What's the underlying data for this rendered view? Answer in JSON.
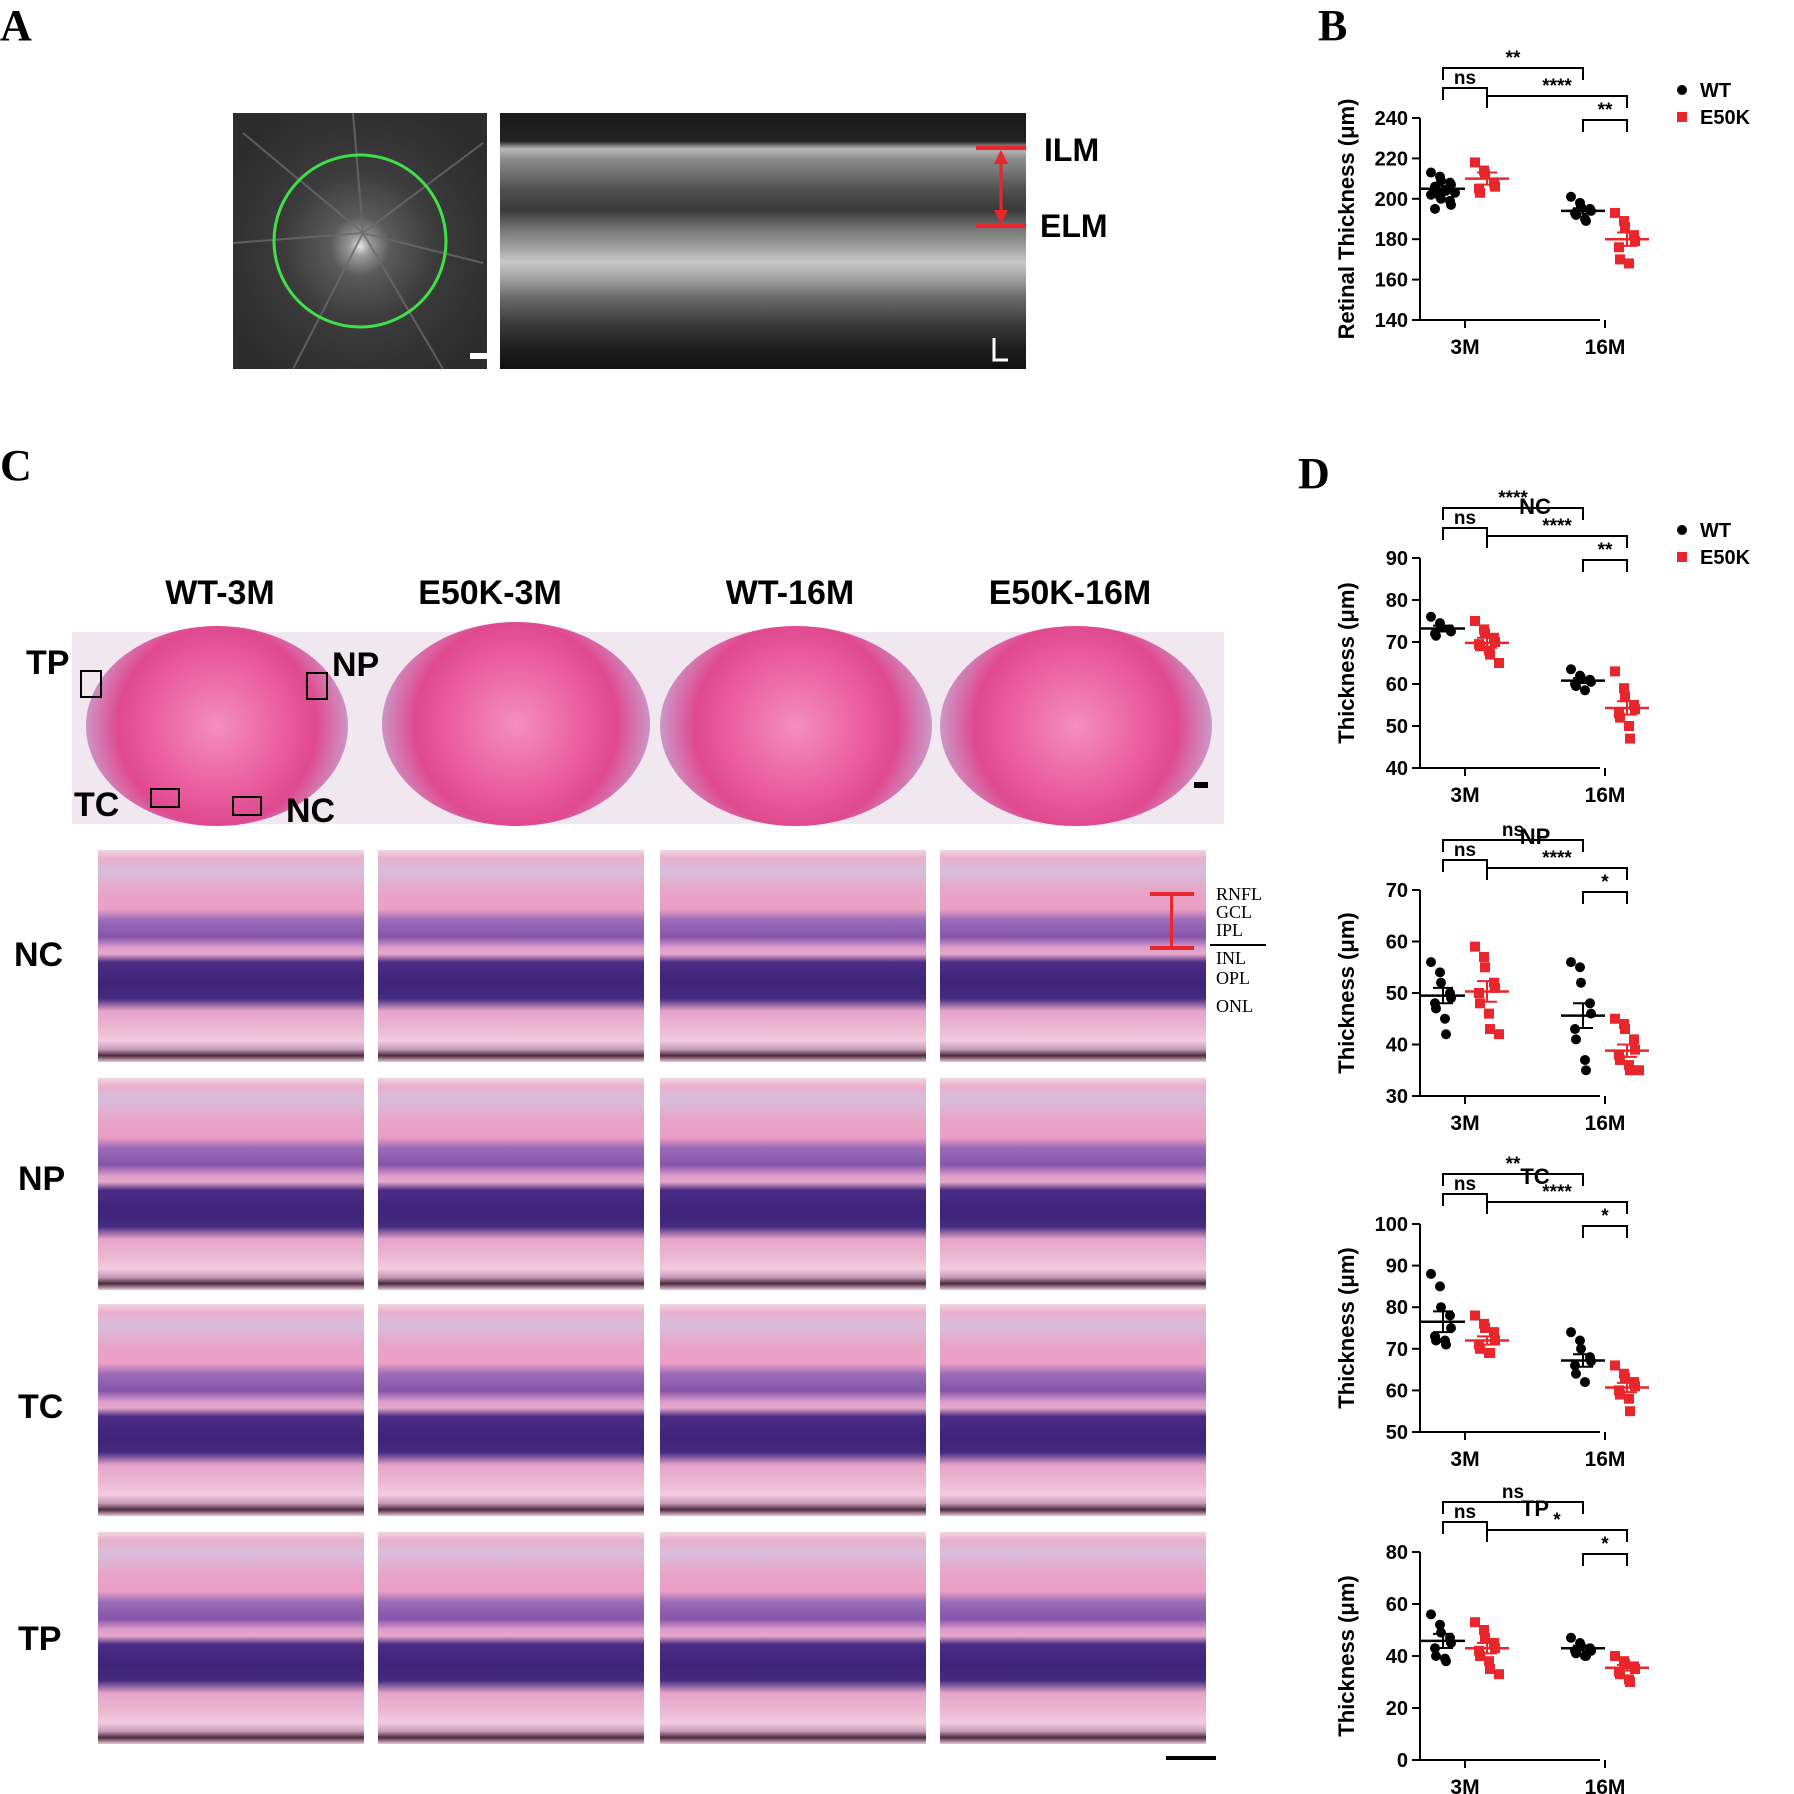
{
  "panels": {
    "a": "A",
    "b": "B",
    "c": "C",
    "d": "D"
  },
  "oct": {
    "ilm": "ILM",
    "elm": "ELM"
  },
  "histology": {
    "columns": [
      "WT-3M",
      "E50K-3M",
      "WT-16M",
      "E50K-16M"
    ],
    "rows": [
      "NC",
      "NP",
      "TC",
      "TP"
    ],
    "region_marks": [
      "TP",
      "NP",
      "TC",
      "NC"
    ],
    "layers": [
      "RNFL",
      "GCL",
      "IPL",
      "INL",
      "OPL",
      "ONL"
    ]
  },
  "legend": [
    "WT",
    "E50K"
  ],
  "colors": {
    "wt": "#000000",
    "e50k": "#e8262b"
  },
  "chart_data": [
    {
      "type": "scatter",
      "panel": "B",
      "ylabel": "Retinal Thickness (μm)",
      "categories": [
        "3M",
        "16M"
      ],
      "ylim": [
        140,
        240
      ],
      "yticks": [
        140,
        160,
        180,
        200,
        220,
        240
      ],
      "series": [
        {
          "name": "WT",
          "means": [
            205,
            194
          ],
          "sems": [
            1.4,
            1.3
          ],
          "points": [
            [
              213,
              211,
              209,
              208,
              207,
              206,
              205,
              204,
              204,
              203,
              202,
              201,
              200,
              199,
              197,
              195
            ],
            [
              201,
              198,
              196,
              195,
              194,
              193,
              192,
              190,
              189
            ]
          ]
        },
        {
          "name": "E50K",
          "means": [
            210,
            180
          ],
          "sems": [
            3,
            3.3
          ],
          "points": [
            [
              218,
              214,
              212,
              208,
              206,
              205,
              203
            ],
            [
              193,
              189,
              186,
              182,
              179,
              176,
              170,
              168
            ]
          ]
        }
      ],
      "brackets": [
        {
          "text": "**",
          "from": [
            0,
            0
          ],
          "to": [
            1,
            0
          ],
          "level": 0
        },
        {
          "text": "ns",
          "from": [
            0,
            0
          ],
          "to": [
            0,
            1
          ],
          "level": 2
        },
        {
          "text": "****",
          "from": [
            0,
            1
          ],
          "to": [
            1,
            1
          ],
          "level": 1
        },
        {
          "text": "**",
          "from": [
            1,
            0
          ],
          "to": [
            1,
            1
          ],
          "level": 3
        }
      ]
    },
    {
      "type": "scatter",
      "panel": "D",
      "title": "NC",
      "ylabel": "Thickness (μm)",
      "categories": [
        "3M",
        "16M"
      ],
      "ylim": [
        40,
        90
      ],
      "yticks": [
        40,
        50,
        60,
        70,
        80,
        90
      ],
      "series": [
        {
          "name": "WT",
          "means": [
            73.2,
            60.8
          ],
          "sems": [
            0.7,
            0.6
          ],
          "points": [
            [
              76,
              74.5,
              73.5,
              73,
              72.5,
              72,
              71.5
            ],
            [
              63.5,
              62,
              61.5,
              61,
              60.5,
              60,
              59.5,
              58.5
            ]
          ]
        },
        {
          "name": "E50K",
          "means": [
            69.8,
            54.3
          ],
          "sems": [
            1.2,
            1.6
          ],
          "points": [
            [
              75,
              73,
              72,
              71,
              70,
              69.5,
              69,
              68,
              67,
              65
            ],
            [
              63,
              59,
              57,
              55,
              54,
              53,
              52,
              50,
              47
            ]
          ]
        }
      ],
      "brackets": [
        {
          "text": "****",
          "from": [
            0,
            0
          ],
          "to": [
            1,
            0
          ],
          "level": 0
        },
        {
          "text": "ns",
          "from": [
            0,
            0
          ],
          "to": [
            0,
            1
          ],
          "level": 2
        },
        {
          "text": "****",
          "from": [
            0,
            1
          ],
          "to": [
            1,
            1
          ],
          "level": 1
        },
        {
          "text": "**",
          "from": [
            1,
            0
          ],
          "to": [
            1,
            1
          ],
          "level": 3
        }
      ]
    },
    {
      "type": "scatter",
      "panel": "D",
      "title": "NP",
      "ylabel": "Thickness (μm)",
      "categories": [
        "3M",
        "16M"
      ],
      "ylim": [
        30,
        70
      ],
      "yticks": [
        30,
        40,
        50,
        60,
        70
      ],
      "series": [
        {
          "name": "WT",
          "means": [
            49.5,
            45.6
          ],
          "sems": [
            1.5,
            2.4
          ],
          "points": [
            [
              56,
              54,
              52,
              50,
              49,
              48,
              47,
              45,
              42
            ],
            [
              56,
              55,
              52,
              48,
              46,
              43,
              41,
              37,
              35
            ]
          ]
        },
        {
          "name": "E50K",
          "means": [
            50.3,
            38.8
          ],
          "sems": [
            2,
            1.2
          ],
          "points": [
            [
              59,
              57,
              55,
              52,
              51,
              50,
              48,
              46,
              43,
              42
            ],
            [
              45,
              44,
              43,
              41,
              39,
              38,
              37,
              36,
              35,
              35
            ]
          ]
        }
      ],
      "brackets": [
        {
          "text": "ns",
          "from": [
            0,
            0
          ],
          "to": [
            1,
            0
          ],
          "level": 0
        },
        {
          "text": "ns",
          "from": [
            0,
            0
          ],
          "to": [
            0,
            1
          ],
          "level": 2
        },
        {
          "text": "****",
          "from": [
            0,
            1
          ],
          "to": [
            1,
            1
          ],
          "level": 1
        },
        {
          "text": "*",
          "from": [
            1,
            0
          ],
          "to": [
            1,
            1
          ],
          "level": 3
        }
      ]
    },
    {
      "type": "scatter",
      "panel": "D",
      "title": "TC",
      "ylabel": "Thickness (μm)",
      "categories": [
        "3M",
        "16M"
      ],
      "ylim": [
        50,
        100
      ],
      "yticks": [
        50,
        60,
        70,
        80,
        90,
        100
      ],
      "series": [
        {
          "name": "WT",
          "means": [
            76.5,
            67.2
          ],
          "sems": [
            2.5,
            1.5
          ],
          "points": [
            [
              88,
              85,
              80,
              78,
              75,
              73,
              72,
              72,
              71
            ],
            [
              74,
              72,
              70,
              68,
              67,
              66,
              64,
              62
            ]
          ]
        },
        {
          "name": "E50K",
          "means": [
            72,
            60.7
          ],
          "sems": [
            1,
            1.1
          ],
          "points": [
            [
              78,
              76,
              75,
              74,
              72,
              71,
              70,
              69,
              69
            ],
            [
              66,
              64,
              63,
              62,
              61,
              60,
              59,
              58,
              55
            ]
          ]
        }
      ],
      "brackets": [
        {
          "text": "**",
          "from": [
            0,
            0
          ],
          "to": [
            1,
            0
          ],
          "level": 0
        },
        {
          "text": "ns",
          "from": [
            0,
            0
          ],
          "to": [
            0,
            1
          ],
          "level": 2
        },
        {
          "text": "****",
          "from": [
            0,
            1
          ],
          "to": [
            1,
            1
          ],
          "level": 1
        },
        {
          "text": "*",
          "from": [
            1,
            0
          ],
          "to": [
            1,
            1
          ],
          "level": 3
        }
      ]
    },
    {
      "type": "scatter",
      "panel": "D",
      "title": "TP",
      "ylabel": "Thickness (μm)",
      "categories": [
        "3M",
        "16M"
      ],
      "ylim": [
        0,
        80
      ],
      "yticks": [
        0,
        20,
        40,
        60,
        80
      ],
      "series": [
        {
          "name": "WT",
          "means": [
            45.8,
            43
          ],
          "sems": [
            2.7,
            1
          ],
          "points": [
            [
              56,
              52,
              49,
              47,
              45,
              43,
              40,
              39,
              38
            ],
            [
              47,
              45,
              44,
              43,
              42,
              42,
              41,
              40,
              40
            ]
          ]
        },
        {
          "name": "E50K",
          "means": [
            43,
            35.5
          ],
          "sems": [
            2,
            1.1
          ],
          "points": [
            [
              53,
              50,
              47,
              45,
              43,
              42,
              40,
              38,
              35,
              33
            ],
            [
              40,
              38,
              37,
              36,
              35,
              34,
              33,
              31,
              30
            ]
          ]
        }
      ],
      "brackets": [
        {
          "text": "ns",
          "from": [
            0,
            0
          ],
          "to": [
            1,
            0
          ],
          "level": 0
        },
        {
          "text": "ns",
          "from": [
            0,
            0
          ],
          "to": [
            0,
            1
          ],
          "level": 2
        },
        {
          "text": "*",
          "from": [
            0,
            1
          ],
          "to": [
            1,
            1
          ],
          "level": 1
        },
        {
          "text": "*",
          "from": [
            1,
            0
          ],
          "to": [
            1,
            1
          ],
          "level": 3
        }
      ]
    }
  ]
}
